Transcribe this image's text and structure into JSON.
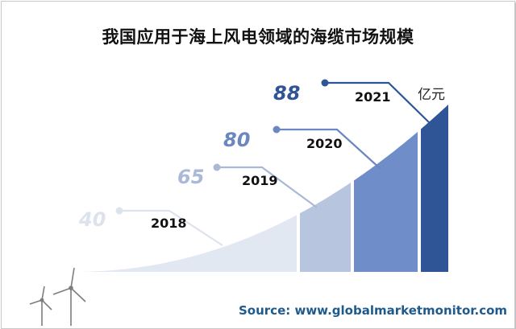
{
  "title": "我国应用于海上风电领域的海缆市场规模",
  "unit": "亿元",
  "source": "Source: www.globalmarketmonitor.com",
  "chart_data": {
    "type": "bar",
    "title": "我国应用于海上风电领域的海缆市场规模",
    "categories": [
      "2018",
      "2019",
      "2020",
      "2021"
    ],
    "values": [
      40,
      65,
      80,
      88
    ],
    "unit": "亿元",
    "colors": [
      "#e2e8f2",
      "#b7c5df",
      "#6f8ec9",
      "#2f5597"
    ],
    "label_colors": [
      "#dde3ee",
      "#aab9d8",
      "#6b87c1",
      "#2f5597"
    ]
  }
}
